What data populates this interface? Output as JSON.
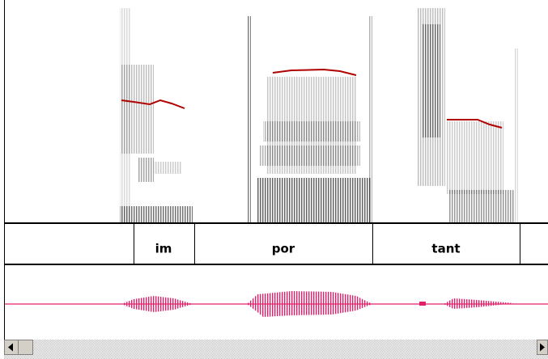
{
  "tier": {
    "intervals": [
      {
        "label": "im"
      },
      {
        "label": "por"
      },
      {
        "label": "tant"
      }
    ]
  }
}
